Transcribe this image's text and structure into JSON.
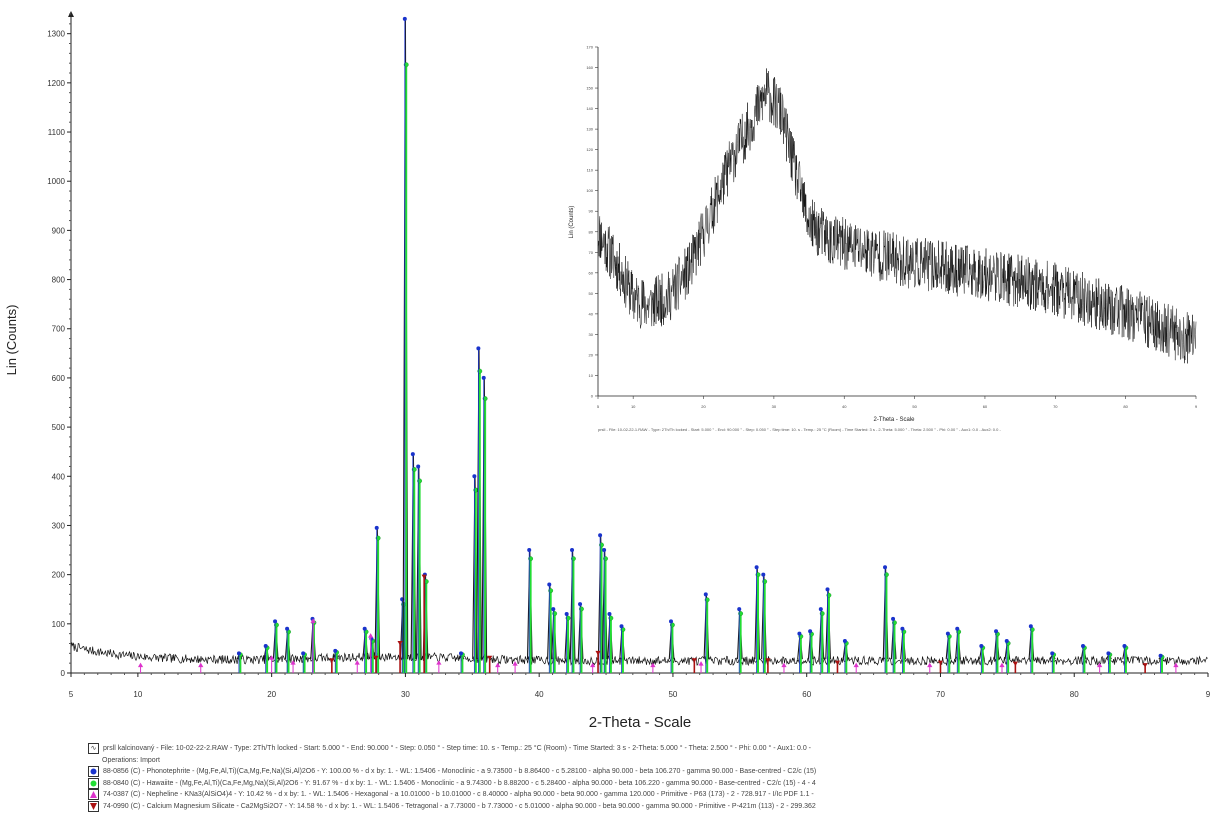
{
  "chart_data": [
    {
      "type": "line",
      "xlabel": "2-Theta - Scale",
      "ylabel": "Lin (Counts)",
      "xlim": [
        5,
        90
      ],
      "ylim": [
        0,
        1340
      ],
      "x_ticks": [
        "5",
        "10",
        "20",
        "30",
        "40",
        "50",
        "60",
        "70",
        "80",
        "9"
      ],
      "y_ticks": [
        "0",
        "100",
        "200",
        "300",
        "400",
        "500",
        "600",
        "700",
        "800",
        "900",
        "1000",
        "1100",
        "1200",
        "1300"
      ],
      "background_level": 25,
      "peaks": [
        {
          "x": 17.6,
          "y": 40
        },
        {
          "x": 19.6,
          "y": 55
        },
        {
          "x": 20.3,
          "y": 105
        },
        {
          "x": 21.2,
          "y": 90
        },
        {
          "x": 22.4,
          "y": 40
        },
        {
          "x": 23.1,
          "y": 110
        },
        {
          "x": 24.8,
          "y": 45
        },
        {
          "x": 27.0,
          "y": 90
        },
        {
          "x": 27.5,
          "y": 70
        },
        {
          "x": 27.9,
          "y": 295
        },
        {
          "x": 29.8,
          "y": 150
        },
        {
          "x": 30.0,
          "y": 1330
        },
        {
          "x": 30.6,
          "y": 445
        },
        {
          "x": 31.0,
          "y": 420
        },
        {
          "x": 31.5,
          "y": 200
        },
        {
          "x": 34.2,
          "y": 40
        },
        {
          "x": 35.2,
          "y": 400
        },
        {
          "x": 35.5,
          "y": 660
        },
        {
          "x": 35.9,
          "y": 600
        },
        {
          "x": 39.3,
          "y": 250
        },
        {
          "x": 40.8,
          "y": 180
        },
        {
          "x": 41.1,
          "y": 130
        },
        {
          "x": 42.1,
          "y": 120
        },
        {
          "x": 42.5,
          "y": 250
        },
        {
          "x": 43.1,
          "y": 140
        },
        {
          "x": 44.6,
          "y": 280
        },
        {
          "x": 44.9,
          "y": 250
        },
        {
          "x": 45.3,
          "y": 120
        },
        {
          "x": 46.2,
          "y": 95
        },
        {
          "x": 49.9,
          "y": 105
        },
        {
          "x": 52.5,
          "y": 160
        },
        {
          "x": 55.0,
          "y": 130
        },
        {
          "x": 56.3,
          "y": 215
        },
        {
          "x": 56.8,
          "y": 200
        },
        {
          "x": 59.5,
          "y": 80
        },
        {
          "x": 60.3,
          "y": 85
        },
        {
          "x": 61.1,
          "y": 130
        },
        {
          "x": 61.6,
          "y": 170
        },
        {
          "x": 62.9,
          "y": 65
        },
        {
          "x": 65.9,
          "y": 215
        },
        {
          "x": 66.5,
          "y": 110
        },
        {
          "x": 67.2,
          "y": 90
        },
        {
          "x": 70.6,
          "y": 80
        },
        {
          "x": 71.3,
          "y": 90
        },
        {
          "x": 73.1,
          "y": 55
        },
        {
          "x": 74.2,
          "y": 85
        },
        {
          "x": 75.0,
          "y": 65
        },
        {
          "x": 76.8,
          "y": 95
        },
        {
          "x": 78.4,
          "y": 40
        },
        {
          "x": 80.7,
          "y": 55
        },
        {
          "x": 82.6,
          "y": 40
        },
        {
          "x": 83.8,
          "y": 55
        },
        {
          "x": 86.5,
          "y": 35
        }
      ],
      "legend": [
        {
          "marker": "file",
          "color": "#333333",
          "text": "prsll kalcinovaný - File: 10-02-22-2.RAW - Type: 2Th/Th locked - Start: 5.000 ° - End: 90.000 ° - Step: 0.050 ° - Step time: 10. s - Temp.: 25 °C (Room) - Time Started: 3 s - 2-Theta: 5.000 ° - Theta: 2.500 ° - Phi: 0.00 ° - Aux1: 0.0 -",
          "continuation": "Operations: Import"
        },
        {
          "marker": "circle",
          "color": "#1a33cc",
          "text": "88-0856 (C) - Phonotephrite - (Mg,Fe,Al,Ti)(Ca,Mg,Fe,Na)(Si,Al)2O6 - Y: 100.00 % - d x by: 1. - WL: 1.5406 - Monoclinic - a 9.73500 - b 8.86400 - c 5.28100 - alpha 90.000 - beta 106.270 - gamma 90.000 - Base-centred - C2/c (15)"
        },
        {
          "marker": "circle",
          "color": "#22dd33",
          "text": "88-0840 (C) - Hawaiite - (Mg,Fe,Al,Ti)(Ca,Fe,Mg,Na)(Si,Al)2O6 - Y: 91.67 % - d x by: 1. - WL: 1.5406 - Monoclinic - a 9.74300 - b 8.88200 - c 5.28400 - alpha 90.000 - beta 106.220 - gamma 90.000 - Base-centred - C2/c (15) - 4 - 4"
        },
        {
          "marker": "triangle-up",
          "color": "#dd33cc",
          "text": "74-0387 (C) - Nepheline - KNa3(AlSiO4)4 - Y: 10.42 % - d x by: 1. - WL: 1.5406 - Hexagonal - a 10.01000 - b 10.01000 - c 8.40000 - alpha 90.000 - beta 90.000 - gamma 120.000 - Primitive - P63 (173) - 2 - 728.917 - I/Ic PDF 1.1 -"
        },
        {
          "marker": "triangle-down",
          "color": "#aa1111",
          "text": "74-0990 (C) - Calcium Magnesium Silicate - Ca2MgSi2O7 - Y: 14.58 % - d x by: 1. - WL: 1.5406 - Tetragonal - a 7.73000 - b 7.73000 - c 5.01000 - alpha 90.000 - beta 90.000 - gamma 90.000 - Primitive - P-421m (113) - 2 - 299.362"
        }
      ]
    },
    {
      "type": "line",
      "xlabel": "2-Theta - Scale",
      "ylabel": "Lin (Counts)",
      "xlim": [
        5,
        90
      ],
      "ylim": [
        0,
        170
      ],
      "x_ticks": [
        "5",
        "10",
        "20",
        "30",
        "40",
        "50",
        "60",
        "70",
        "80",
        "9"
      ],
      "caption": "prsll - File: 10-02-22-1.RAW - Type: 2Th/Th locked - Start: 5.000 ° - End: 90.000 ° - Step: 0.050 ° - Step time: 10. s - Temp.: 25 °C (Room) - Time Started: 3 s - 2-Theta: 5.000 ° - Theta: 2.500 ° - Phi: 0.00 ° - Aux1: 0.0 - Aux2: 0.0 -",
      "profile": [
        {
          "x": 5,
          "y": 80
        },
        {
          "x": 8,
          "y": 62
        },
        {
          "x": 10,
          "y": 48
        },
        {
          "x": 12,
          "y": 44
        },
        {
          "x": 15,
          "y": 48
        },
        {
          "x": 18,
          "y": 62
        },
        {
          "x": 21,
          "y": 88
        },
        {
          "x": 24,
          "y": 115
        },
        {
          "x": 27,
          "y": 135
        },
        {
          "x": 29,
          "y": 148
        },
        {
          "x": 31,
          "y": 138
        },
        {
          "x": 33,
          "y": 110
        },
        {
          "x": 35,
          "y": 84
        },
        {
          "x": 38,
          "y": 76
        },
        {
          "x": 42,
          "y": 72
        },
        {
          "x": 48,
          "y": 66
        },
        {
          "x": 55,
          "y": 62
        },
        {
          "x": 62,
          "y": 58
        },
        {
          "x": 70,
          "y": 52
        },
        {
          "x": 76,
          "y": 45
        },
        {
          "x": 82,
          "y": 38
        },
        {
          "x": 86,
          "y": 32
        },
        {
          "x": 90,
          "y": 26
        }
      ]
    }
  ]
}
